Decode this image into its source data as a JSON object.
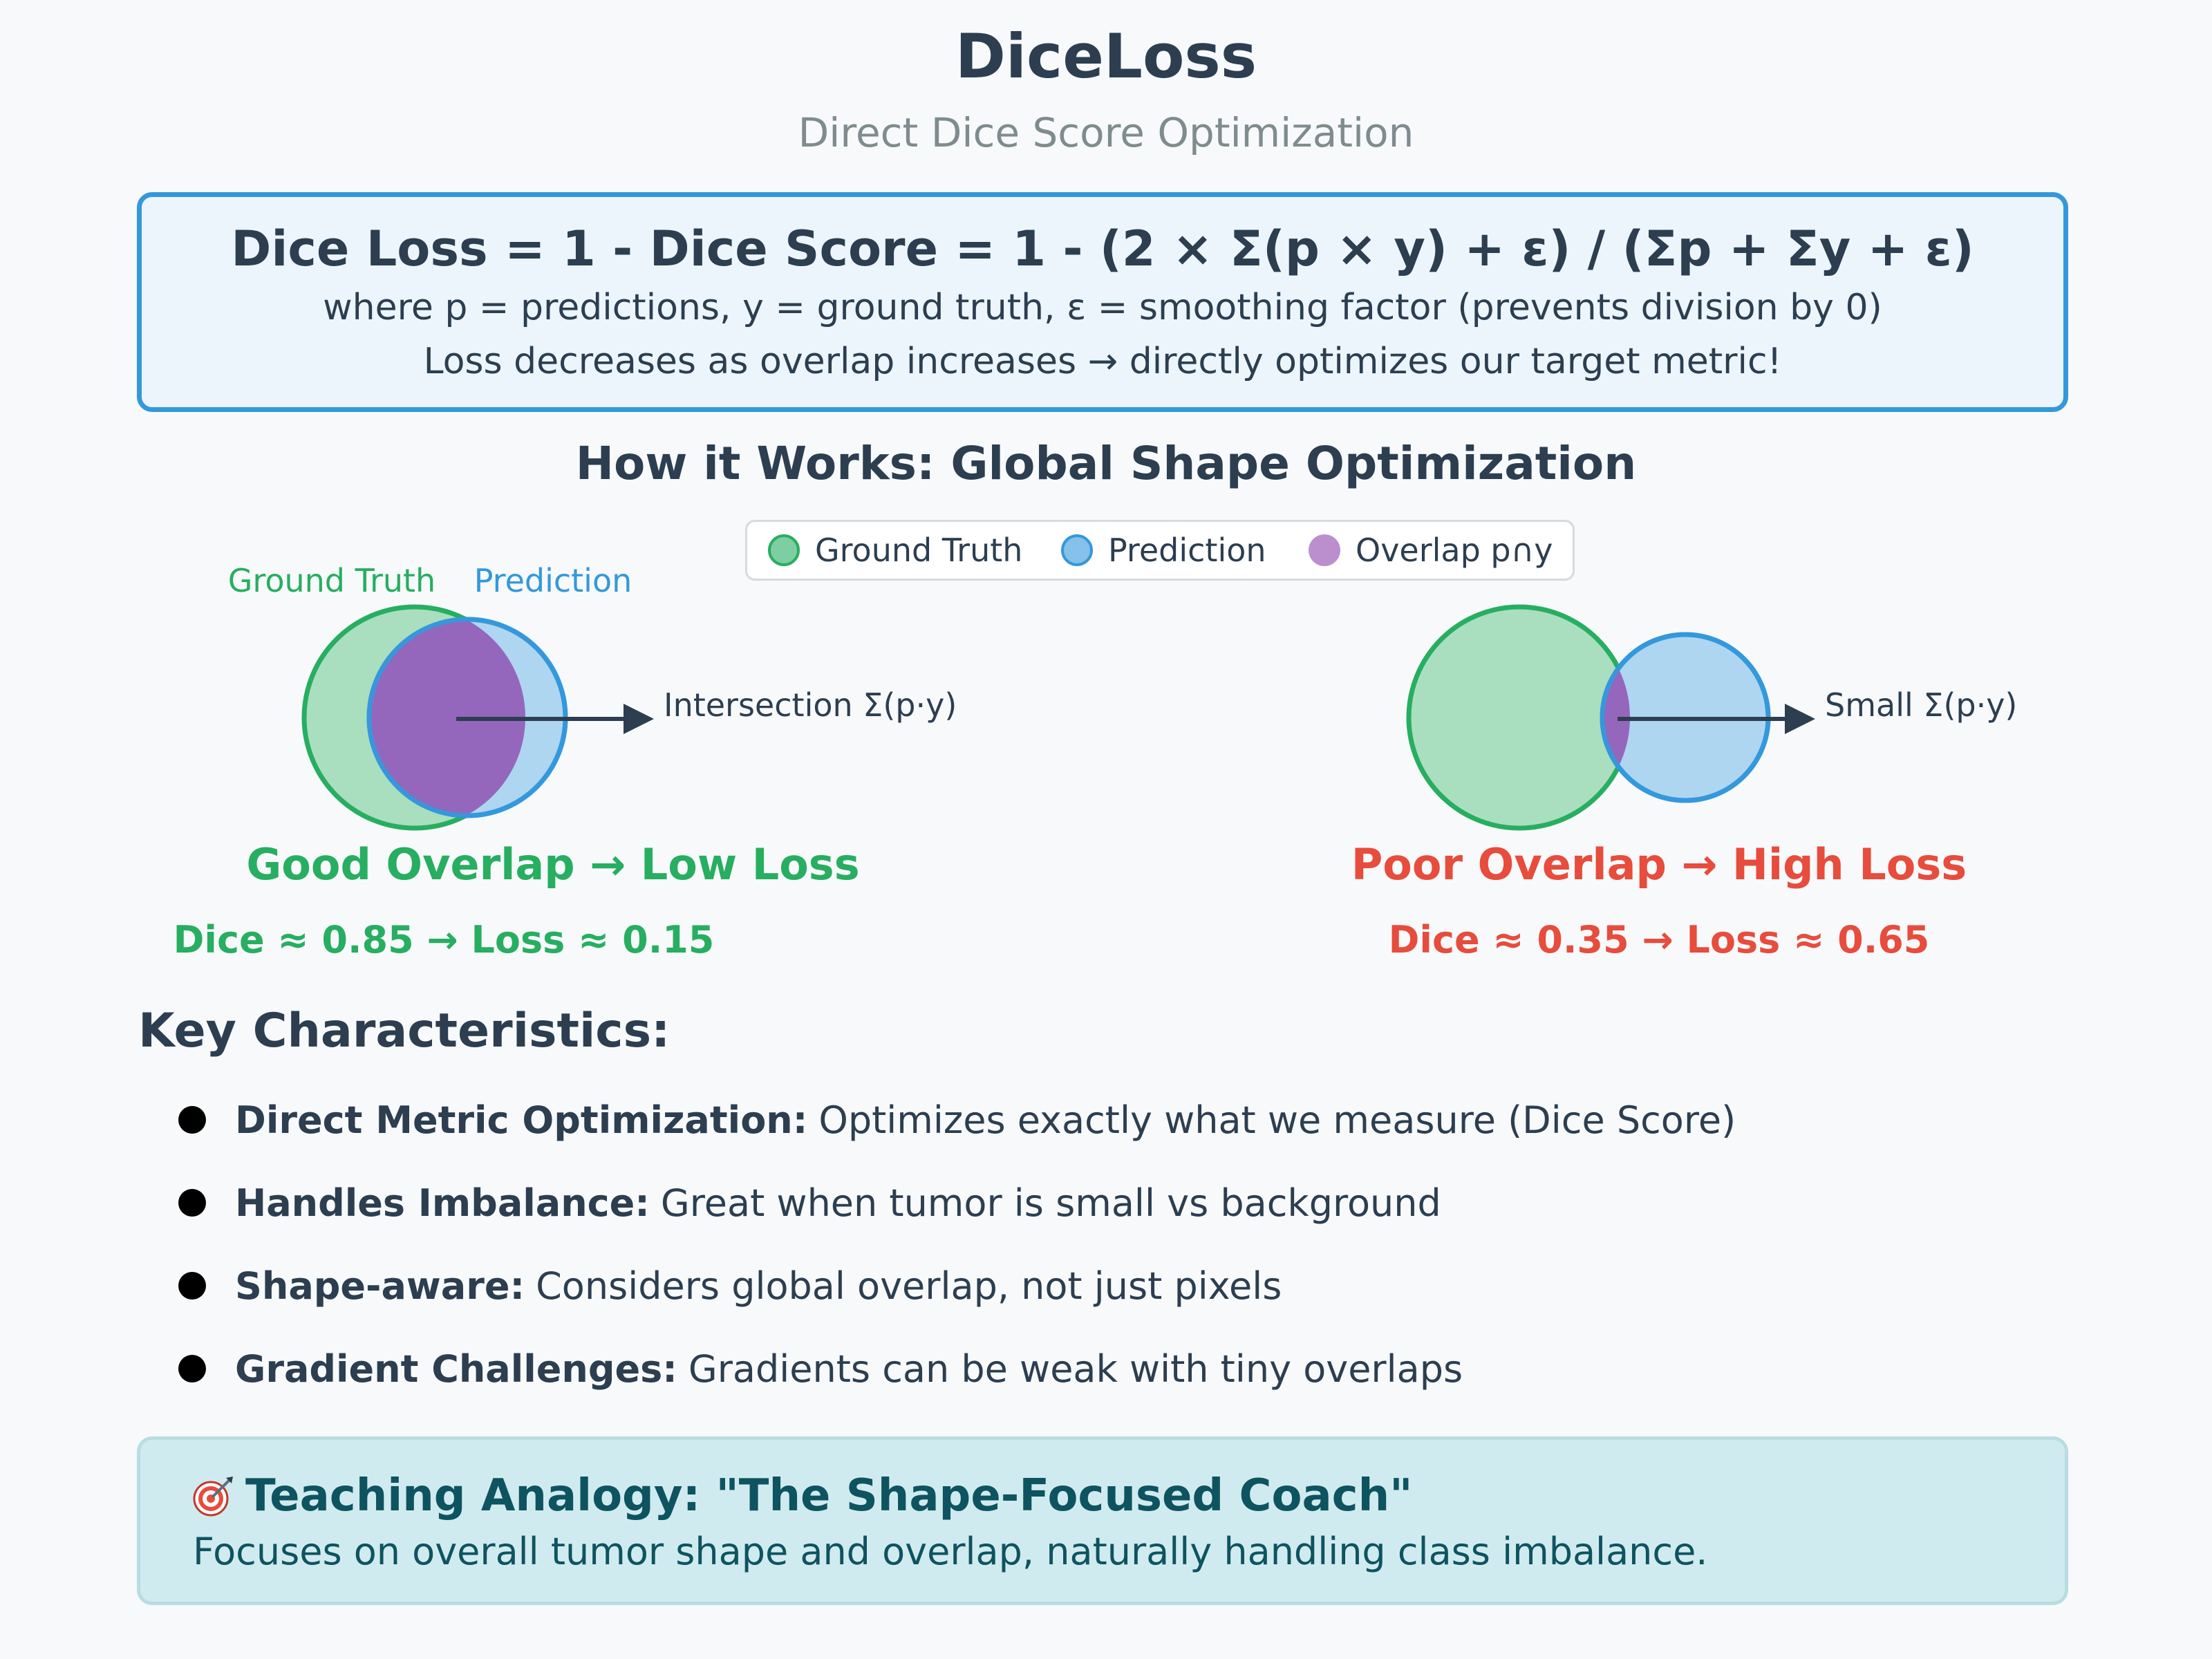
{
  "header": {
    "title": "DiceLoss",
    "subtitle": "Direct Dice Score Optimization"
  },
  "formula": {
    "main": "Dice Loss = 1 - Dice Score = 1 - (2 × Σ(p × y) + ε) / (Σp + Σy + ε)",
    "where": "where p = predictions, y = ground truth, ε = smoothing factor (prevents division by 0)",
    "note": "Loss decreases as overlap increases → directly optimizes our target metric!"
  },
  "section_title": "How it Works: Global Shape Optimization",
  "legend": [
    {
      "label": "Ground Truth",
      "color": "#7dcea0",
      "border": "#27ae60"
    },
    {
      "label": "Prediction",
      "color": "#85c1e9",
      "border": "#3498db"
    },
    {
      "label": "Overlap p∩y",
      "color": "#bb8fce",
      "border": "#bb8fce"
    }
  ],
  "colors": {
    "gt_fill": "#a9dfbf",
    "gt_stroke": "#27ae60",
    "pred_fill": "#aed6f1",
    "pred_stroke": "#3498db",
    "overlap_fill": "#9467bd",
    "good": "#27ae60",
    "poor": "#e74c3c",
    "arrow": "#2c3e50"
  },
  "good_example": {
    "gt_label": "Ground Truth",
    "pred_label": "Prediction",
    "arrow_label": "Intersection Σ(p·y)",
    "heading": "Good Overlap → Low Loss",
    "scores": "Dice ≈ 0.85 → Loss ≈ 0.15"
  },
  "poor_example": {
    "arrow_label": "Small Σ(p·y)",
    "heading": "Poor Overlap → High Loss",
    "scores": "Dice ≈ 0.35 → Loss ≈ 0.65"
  },
  "key_characteristics": {
    "title": "Key Characteristics:",
    "items": [
      {
        "label": "Direct Metric Optimization:",
        "text": "Optimizes exactly what we measure (Dice Score)"
      },
      {
        "label": "Handles Imbalance:",
        "text": "Great when tumor is small vs background"
      },
      {
        "label": "Shape-aware:",
        "text": "Considers global overlap, not just pixels"
      },
      {
        "label": "Gradient Challenges:",
        "text": "Gradients can be weak with tiny overlaps"
      }
    ]
  },
  "analogy": {
    "icon": "target-icon",
    "title": "Teaching Analogy: \"The Shape-Focused Coach\"",
    "text": "Focuses on overall tumor shape and overlap, naturally handling class imbalance."
  }
}
